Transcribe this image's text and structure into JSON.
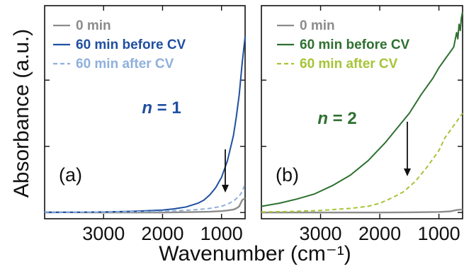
{
  "chart_data": [
    {
      "type": "line",
      "panel_label": "(a)",
      "annotation": {
        "italic": "n",
        "rest": " = 1",
        "color": "#1f4fa1"
      },
      "xlabel": "Wavenumber (cm⁻¹)",
      "ylabel": "Absorbance (a.u.)",
      "xlim": [
        4000,
        600
      ],
      "ylim": [
        -0.03,
        1.0
      ],
      "x_ticks": [
        3000,
        2000,
        1000
      ],
      "x_tick_labels": [
        "3000",
        "2000",
        "1000"
      ],
      "grid": false,
      "legend": "top-left",
      "series": [
        {
          "name": "0 min",
          "color": "#8c8c8c",
          "dash": "solid",
          "x": [
            4000,
            3500,
            3000,
            2500,
            2000,
            1500,
            1200,
            1000,
            900,
            800,
            750,
            700,
            650,
            600
          ],
          "y": [
            0.002,
            0.001,
            0.0,
            0.0,
            0.0,
            0.002,
            0.004,
            0.007,
            0.01,
            0.014,
            0.02,
            0.03,
            0.06,
            0.07
          ]
        },
        {
          "name": "60 min before CV",
          "color": "#1f4fa1",
          "dash": "solid",
          "x": [
            4000,
            3500,
            3000,
            2500,
            2000,
            1800,
            1600,
            1400,
            1300,
            1200,
            1100,
            1000,
            900,
            800,
            750,
            700,
            650,
            600
          ],
          "y": [
            0.0,
            0.001,
            0.003,
            0.006,
            0.012,
            0.018,
            0.027,
            0.045,
            0.06,
            0.085,
            0.12,
            0.17,
            0.25,
            0.37,
            0.46,
            0.57,
            0.72,
            0.85
          ]
        },
        {
          "name": "60 min after CV",
          "color": "#8fb0dc",
          "dash": "dashed",
          "x": [
            4000,
            3500,
            3000,
            2500,
            2000,
            1500,
            1200,
            1000,
            900,
            800,
            700,
            650,
            600
          ],
          "y": [
            0.002,
            0.002,
            0.003,
            0.004,
            0.006,
            0.012,
            0.02,
            0.03,
            0.04,
            0.055,
            0.08,
            0.1,
            0.14
          ]
        }
      ]
    },
    {
      "type": "line",
      "panel_label": "(b)",
      "annotation": {
        "italic": "n",
        "rest": " = 2",
        "color": "#2e7030"
      },
      "xlabel": "Wavenumber (cm⁻¹)",
      "xlim": [
        4000,
        600
      ],
      "ylim": [
        -0.03,
        1.0
      ],
      "x_ticks": [
        3000,
        2000,
        1000
      ],
      "x_tick_labels": [
        "3000",
        "2000",
        "1000"
      ],
      "grid": false,
      "legend": "top-left",
      "series": [
        {
          "name": "0 min",
          "color": "#8c8c8c",
          "dash": "solid",
          "x": [
            4000,
            3500,
            3000,
            2500,
            2000,
            1500,
            1000,
            800,
            700,
            600
          ],
          "y": [
            0.0,
            0.0,
            0.0,
            0.0,
            0.0,
            0.001,
            0.003,
            0.006,
            0.012,
            0.015
          ]
        },
        {
          "name": "60 min before CV",
          "color": "#2e7030",
          "dash": "solid",
          "x": [
            4000,
            3700,
            3400,
            3100,
            2800,
            2500,
            2200,
            1900,
            1700,
            1500,
            1300,
            1100,
            1000,
            900,
            800,
            750,
            700,
            680,
            660,
            640,
            620,
            600
          ],
          "y": [
            0.03,
            0.045,
            0.065,
            0.09,
            0.13,
            0.18,
            0.25,
            0.34,
            0.41,
            0.48,
            0.57,
            0.65,
            0.7,
            0.74,
            0.78,
            0.8,
            0.87,
            0.84,
            0.91,
            0.88,
            0.94,
            0.97
          ]
        },
        {
          "name": "60 min after CV",
          "color": "#a6c437",
          "dash": "dashed",
          "x": [
            4000,
            3500,
            3000,
            2500,
            2200,
            2000,
            1800,
            1600,
            1400,
            1200,
            1000,
            900,
            800,
            700,
            650,
            600
          ],
          "y": [
            0.003,
            0.005,
            0.01,
            0.02,
            0.03,
            0.045,
            0.07,
            0.1,
            0.15,
            0.22,
            0.3,
            0.36,
            0.4,
            0.44,
            0.46,
            0.48
          ]
        }
      ]
    }
  ]
}
